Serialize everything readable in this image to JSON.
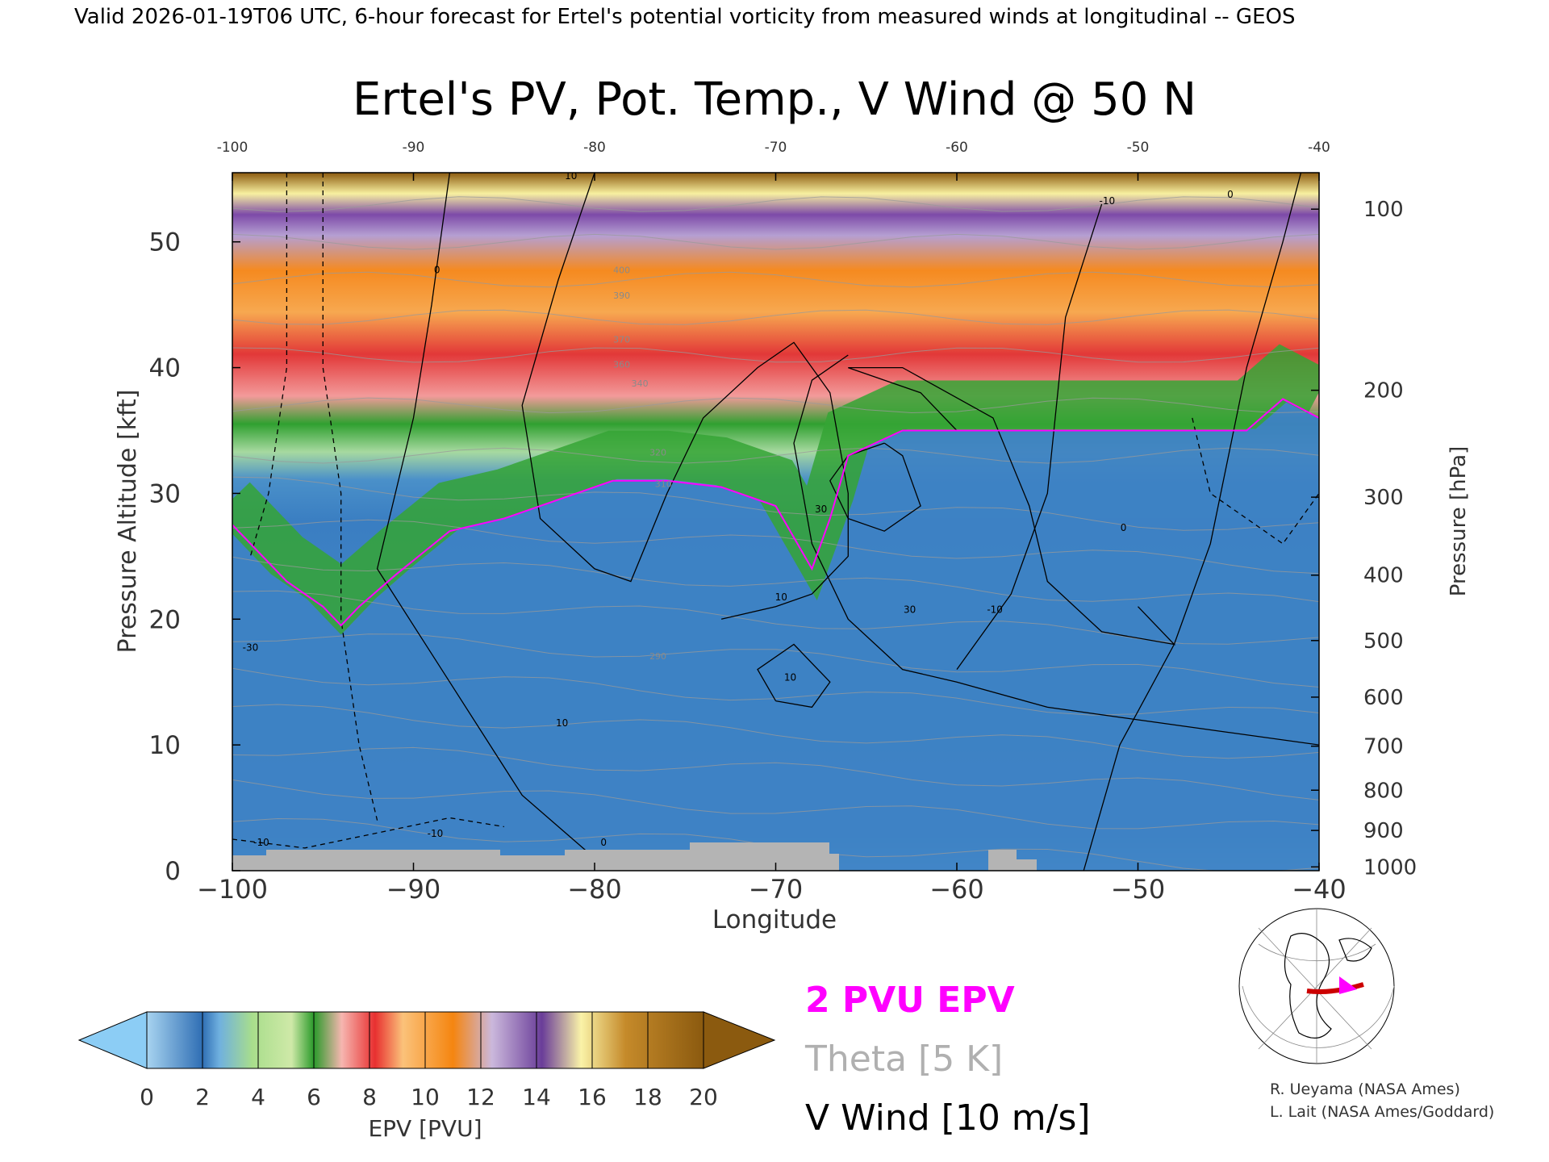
{
  "header": {
    "valid_line": "Valid 2026-01-19T06 UTC, 6-hour forecast for Ertel's potential vorticity from measured winds at longitudinal -- GEOS"
  },
  "chart_data": {
    "type": "heatmap",
    "title": "Ertel's PV, Pot. Temp., V Wind @ 50 N",
    "xlabel": "Longitude",
    "ylabel_left": "Pressure Altitude [kft]",
    "ylabel_right": "Pressure [hPa]",
    "xlim": [
      -100,
      -40
    ],
    "ylim_kft": [
      0,
      55.5
    ],
    "x_ticks": [
      "−100",
      "−90",
      "−80",
      "−70",
      "−60",
      "−50",
      "−40"
    ],
    "x_ticks_top": [
      "-100",
      "-90",
      "-80",
      "-70",
      "-60",
      "-50",
      "-40"
    ],
    "y_ticks_kft": [
      "0",
      "10",
      "20",
      "30",
      "40",
      "50"
    ],
    "pressure_ticks": [
      {
        "label": "100",
        "kft": 52.6
      },
      {
        "label": "200",
        "kft": 38.2
      },
      {
        "label": "300",
        "kft": 29.7
      },
      {
        "label": "400",
        "kft": 23.5
      },
      {
        "label": "500",
        "kft": 18.3
      },
      {
        "label": "600",
        "kft": 13.8
      },
      {
        "label": "700",
        "kft": 9.9
      },
      {
        "label": "800",
        "kft": 6.4
      },
      {
        "label": "900",
        "kft": 3.2
      },
      {
        "label": "1000",
        "kft": 0.3
      }
    ],
    "tropopause_2pvu_kft": [
      {
        "lon": -100,
        "kft": 27.5
      },
      {
        "lon": -97,
        "kft": 23
      },
      {
        "lon": -95,
        "kft": 21
      },
      {
        "lon": -94,
        "kft": 19.5
      },
      {
        "lon": -93,
        "kft": 21
      },
      {
        "lon": -91,
        "kft": 23.5
      },
      {
        "lon": -88,
        "kft": 27
      },
      {
        "lon": -85,
        "kft": 28
      },
      {
        "lon": -82,
        "kft": 29.5
      },
      {
        "lon": -79,
        "kft": 31
      },
      {
        "lon": -76,
        "kft": 31
      },
      {
        "lon": -73,
        "kft": 30.5
      },
      {
        "lon": -70,
        "kft": 29
      },
      {
        "lon": -68,
        "kft": 24
      },
      {
        "lon": -67,
        "kft": 28
      },
      {
        "lon": -66,
        "kft": 33
      },
      {
        "lon": -63,
        "kft": 35
      },
      {
        "lon": -58,
        "kft": 35
      },
      {
        "lon": -53,
        "kft": 35
      },
      {
        "lon": -48,
        "kft": 35
      },
      {
        "lon": -44,
        "kft": 35
      },
      {
        "lon": -42,
        "kft": 37.5
      },
      {
        "lon": -40,
        "kft": 36
      }
    ],
    "v_wind_contours": [
      {
        "level": "10",
        "lon": -81.3,
        "kft": 55
      },
      {
        "level": "0",
        "lon": -88.7,
        "kft": 47.5
      },
      {
        "level": "-10",
        "lon": -51.7,
        "kft": 53
      },
      {
        "level": "0",
        "lon": -44.9,
        "kft": 53.5
      },
      {
        "level": "30",
        "lon": -67.5,
        "kft": 28.5
      },
      {
        "level": "30",
        "lon": -62.6,
        "kft": 20.5
      },
      {
        "level": "10",
        "lon": -69.7,
        "kft": 21.5
      },
      {
        "level": "10",
        "lon": -69.2,
        "kft": 15.1
      },
      {
        "level": "10",
        "lon": -81.8,
        "kft": 11.5
      },
      {
        "level": "-10",
        "lon": -57.9,
        "kft": 20.5
      },
      {
        "level": "0",
        "lon": -50.8,
        "kft": 27
      },
      {
        "level": "-10",
        "lon": -98.4,
        "kft": 2
      },
      {
        "level": "-10",
        "lon": -88.8,
        "kft": 2.7
      },
      {
        "level": "0",
        "lon": -79.5,
        "kft": 2
      },
      {
        "level": "-30",
        "lon": -99,
        "kft": 17.5
      }
    ],
    "theta_labels": [
      {
        "label": "400",
        "lon": -78.5,
        "kft": 47.5
      },
      {
        "label": "390",
        "lon": -78.5,
        "kft": 45.5
      },
      {
        "label": "370",
        "lon": -78.5,
        "kft": 42
      },
      {
        "label": "360",
        "lon": -78.5,
        "kft": 40
      },
      {
        "label": "340",
        "lon": -77.5,
        "kft": 38.5
      },
      {
        "label": "320",
        "lon": -76.5,
        "kft": 33
      },
      {
        "label": "310",
        "lon": -76.2,
        "kft": 30.5
      },
      {
        "label": "290",
        "lon": -76.5,
        "kft": 16.8
      }
    ],
    "epv_colorbar": {
      "label": "EPV [PVU]",
      "ticks": [
        "0",
        "2",
        "4",
        "6",
        "8",
        "10",
        "12",
        "14",
        "16",
        "18",
        "20"
      ]
    },
    "legend": {
      "epv_line": "2 PVU EPV",
      "theta_line": "Theta [5 K]",
      "vwind_line": "V Wind [10 m/s]"
    },
    "colors": {
      "below_zero": "#8ccdf5",
      "pv_low": "#3a7ec2",
      "pv_mid": "#a7d9a0",
      "pv_green": "#30a030",
      "pv_red": "#e23838",
      "pv_orange": "#f58a20",
      "pv_purple": "#7d4aa8",
      "pv_yellow": "#f8f0a0",
      "above_max": "#8b5a0f",
      "tropopause": "#ff00ff",
      "theta": "#a0a0a0",
      "terrain": "#b4b4b4"
    }
  },
  "credits": {
    "line1": "R. Ueyama (NASA Ames)",
    "line2": "L. Lait (NASA Ames/Goddard)"
  }
}
